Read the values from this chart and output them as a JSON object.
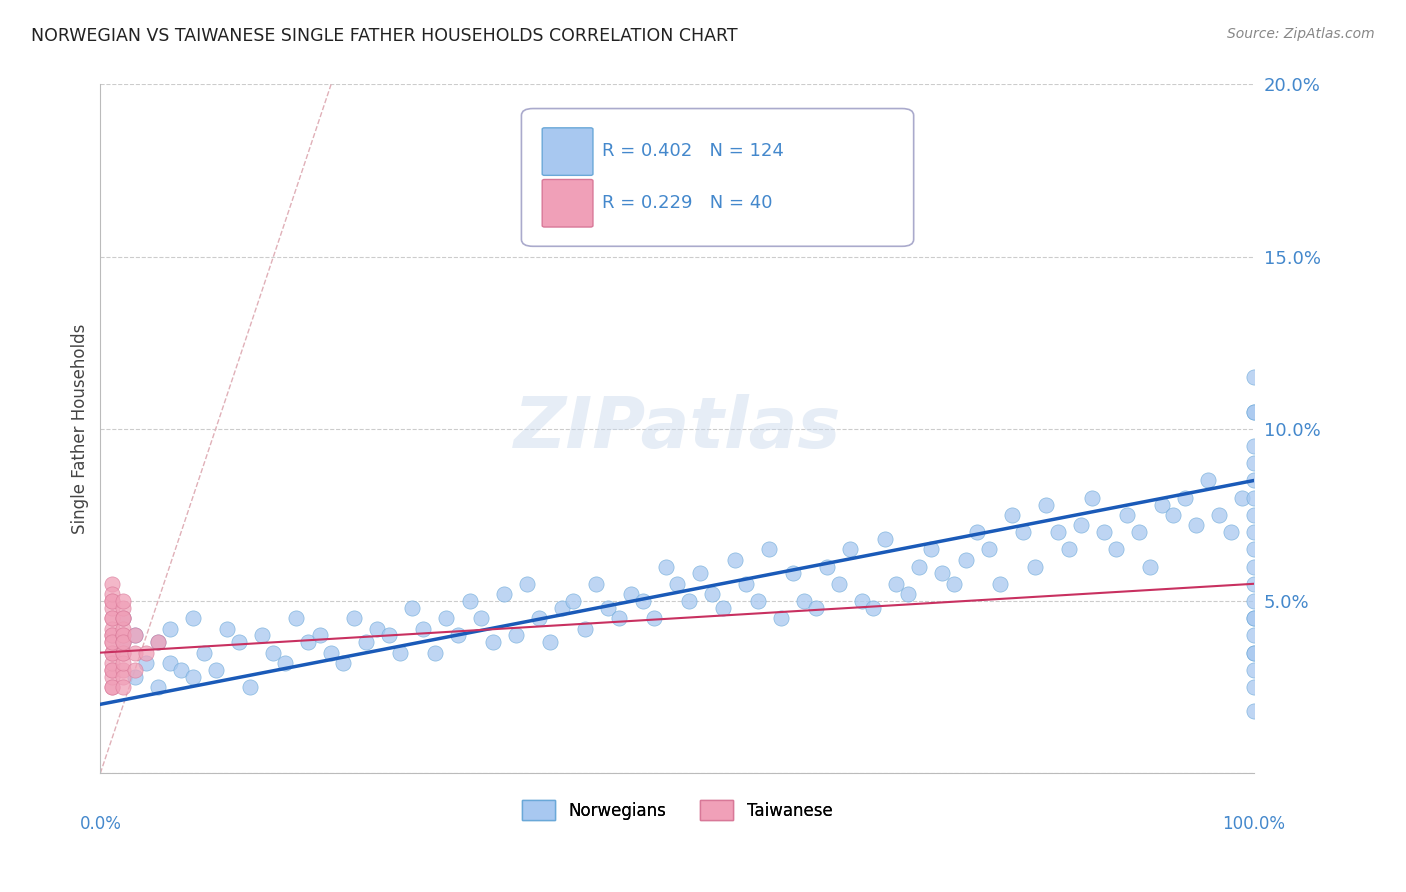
{
  "title": "NORWEGIAN VS TAIWANESE SINGLE FATHER HOUSEHOLDS CORRELATION CHART",
  "source": "Source: ZipAtlas.com",
  "ylabel": "Single Father Households",
  "xlim": [
    0,
    100
  ],
  "ylim": [
    0,
    20
  ],
  "legend1_r": "0.402",
  "legend1_n": "124",
  "legend2_r": "0.229",
  "legend2_n": "40",
  "norwegian_color": "#a8c8f0",
  "norwegian_edge": "#6aa8d8",
  "taiwanese_color": "#f0a0b8",
  "taiwanese_edge": "#d87898",
  "trend_color_norwegian": "#1a5ab8",
  "trend_color_taiwanese": "#c83060",
  "diagonal_color": "#e0b0b8",
  "background_color": "#ffffff",
  "grid_color": "#cccccc",
  "title_color": "#222222",
  "axis_label_color": "#444444",
  "tick_label_color": "#4488cc",
  "legend_color": "#4488cc",
  "watermark": "ZIPatlas",
  "watermark_color": "#c8d8ec",
  "watermark_alpha": 0.45,
  "nor_trend_x0": 0,
  "nor_trend_x1": 100,
  "nor_trend_y0": 2.0,
  "nor_trend_y1": 8.5,
  "tai_trend_x0": 0,
  "tai_trend_x1": 100,
  "tai_trend_y0": 3.5,
  "tai_trend_y1": 5.5,
  "diag_x0": 0,
  "diag_x1": 20,
  "diag_y0": 0,
  "diag_y1": 20,
  "nor_x": [
    2,
    2,
    3,
    3,
    4,
    5,
    5,
    6,
    6,
    7,
    8,
    8,
    9,
    10,
    11,
    12,
    13,
    14,
    15,
    16,
    17,
    18,
    19,
    20,
    21,
    22,
    23,
    24,
    25,
    26,
    27,
    28,
    29,
    30,
    31,
    32,
    33,
    34,
    35,
    36,
    37,
    38,
    39,
    40,
    41,
    42,
    43,
    44,
    45,
    46,
    47,
    48,
    49,
    50,
    51,
    52,
    53,
    54,
    55,
    56,
    57,
    58,
    59,
    60,
    61,
    62,
    63,
    64,
    65,
    66,
    67,
    68,
    69,
    70,
    71,
    72,
    73,
    74,
    75,
    76,
    77,
    78,
    79,
    80,
    81,
    82,
    83,
    84,
    85,
    86,
    87,
    88,
    89,
    90,
    91,
    92,
    93,
    94,
    95,
    96,
    97,
    98,
    99,
    100,
    100,
    100,
    100,
    100,
    100,
    100,
    100,
    100,
    100,
    100,
    100,
    100,
    100,
    100,
    100,
    100,
    100,
    100,
    100,
    100
  ],
  "nor_y": [
    3.8,
    4.5,
    2.8,
    4.0,
    3.2,
    2.5,
    3.8,
    3.2,
    4.2,
    3.0,
    2.8,
    4.5,
    3.5,
    3.0,
    4.2,
    3.8,
    2.5,
    4.0,
    3.5,
    3.2,
    4.5,
    3.8,
    4.0,
    3.5,
    3.2,
    4.5,
    3.8,
    4.2,
    4.0,
    3.5,
    4.8,
    4.2,
    3.5,
    4.5,
    4.0,
    5.0,
    4.5,
    3.8,
    5.2,
    4.0,
    5.5,
    4.5,
    3.8,
    4.8,
    5.0,
    4.2,
    5.5,
    4.8,
    4.5,
    5.2,
    5.0,
    4.5,
    6.0,
    5.5,
    5.0,
    5.8,
    5.2,
    4.8,
    6.2,
    5.5,
    5.0,
    6.5,
    4.5,
    5.8,
    5.0,
    4.8,
    6.0,
    5.5,
    6.5,
    5.0,
    4.8,
    6.8,
    5.5,
    5.2,
    6.0,
    6.5,
    5.8,
    5.5,
    6.2,
    7.0,
    6.5,
    5.5,
    7.5,
    7.0,
    6.0,
    7.8,
    7.0,
    6.5,
    7.2,
    8.0,
    7.0,
    6.5,
    7.5,
    7.0,
    6.0,
    7.8,
    7.5,
    8.0,
    7.2,
    8.5,
    7.5,
    7.0,
    8.0,
    1.8,
    3.5,
    4.5,
    6.0,
    7.5,
    5.5,
    9.5,
    10.5,
    8.5,
    11.5,
    9.0,
    8.0,
    6.5,
    10.5,
    4.5,
    7.0,
    3.5,
    3.0,
    2.5,
    4.0,
    5.0
  ],
  "tai_x": [
    1,
    1,
    1,
    1,
    1,
    1,
    1,
    1,
    1,
    1,
    1,
    1,
    1,
    1,
    1,
    1,
    1,
    1,
    1,
    1,
    2,
    2,
    2,
    2,
    2,
    2,
    2,
    2,
    2,
    2,
    2,
    2,
    2,
    2,
    2,
    3,
    3,
    3,
    4,
    5
  ],
  "tai_y": [
    2.5,
    3.0,
    3.5,
    4.0,
    4.5,
    5.0,
    5.5,
    3.8,
    2.8,
    4.2,
    3.2,
    4.8,
    3.5,
    5.2,
    4.0,
    3.0,
    2.5,
    4.5,
    3.8,
    5.0,
    3.0,
    3.5,
    4.0,
    4.5,
    2.8,
    3.8,
    4.2,
    3.2,
    4.8,
    5.0,
    3.5,
    2.5,
    4.0,
    3.8,
    4.5,
    3.5,
    4.0,
    3.0,
    3.5,
    3.8
  ]
}
